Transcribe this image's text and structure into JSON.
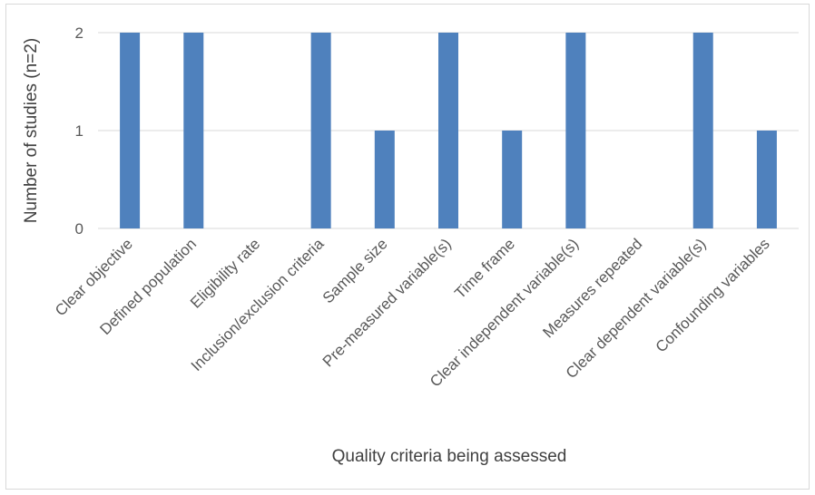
{
  "chart_data": {
    "type": "bar",
    "title": "",
    "xlabel": "Quality criteria being assessed",
    "ylabel": "Number of studies (n=2)",
    "ylim": [
      0,
      2
    ],
    "yticks": [
      0,
      1,
      2
    ],
    "grid": true,
    "legend": "none",
    "bar_color": "#4f81bd",
    "categories": [
      "Clear objective",
      "Defined population",
      "Eligibility rate",
      "Inclusion/exclusion criteria",
      "Sample size",
      "Pre-measured variable(s)",
      "Time frame",
      "Clear independent variable(s)",
      "Measures repeated",
      "Clear dependent variable(s)",
      "Confounding variables"
    ],
    "values": [
      2,
      2,
      0,
      2,
      1,
      2,
      1,
      2,
      0,
      2,
      1
    ]
  }
}
